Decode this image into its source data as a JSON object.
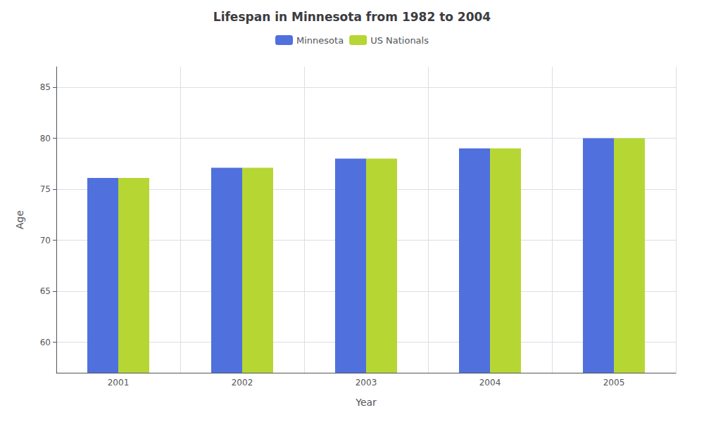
{
  "chart_data": {
    "type": "bar",
    "title": "Lifespan in Minnesota from 1982 to 2004",
    "x_label": "Year",
    "y_label": "Age",
    "categories": [
      "2001",
      "2002",
      "2003",
      "2004",
      "2005"
    ],
    "series": [
      {
        "name": "Minnesota",
        "values": [
          76.1,
          77.1,
          78.0,
          79.0,
          80.0
        ]
      },
      {
        "name": "US Nationals",
        "values": [
          76.1,
          77.1,
          78.0,
          79.0,
          80.0
        ]
      }
    ],
    "ylim": [
      57,
      87
    ],
    "yticks": [
      60,
      65,
      70,
      75,
      80,
      85
    ],
    "grid": true,
    "legend": "top"
  }
}
